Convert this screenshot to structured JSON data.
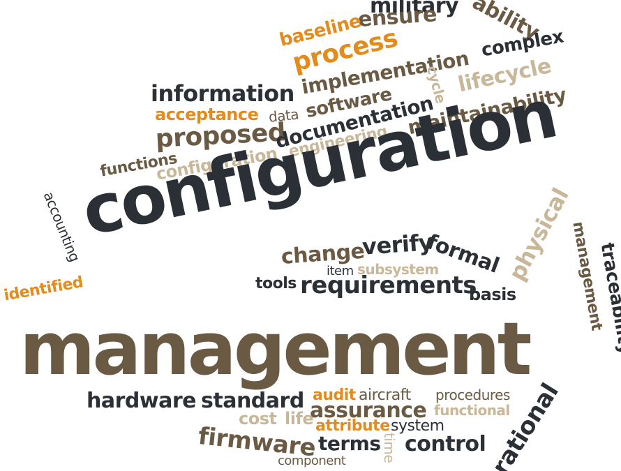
{
  "colors": {
    "dark": "#2b3036",
    "brown": "#6b5a43",
    "orange": "#e38b1b",
    "tan": "#c9b79a",
    "background": "#ffffff"
  },
  "words": {
    "military": "military",
    "ability": "ability",
    "ensure": "ensure",
    "baseline": "baseline",
    "process": "process",
    "complex": "complex",
    "implementation": "implementation",
    "cycle": "cycle",
    "lifecycle": "lifecycle",
    "information": "information",
    "acceptance": "acceptance",
    "data": "data",
    "software": "software",
    "maintainability": "maintainability",
    "documentation": "documentation",
    "proposed": "proposed",
    "engineering": "engineering",
    "functions": "functions",
    "configuration_small": "configuration",
    "configuration_big": "configuration",
    "accounting": "accounting",
    "physical": "physical",
    "management_side": "management",
    "traceability": "traceability",
    "change": "change",
    "verify": "verify",
    "formal": "formal",
    "item": "item",
    "subsystem": "subsystem",
    "identified": "identified",
    "tools": "tools",
    "requirements": "requirements",
    "basis": "basis",
    "management_big": "management",
    "hardware": "hardware",
    "standard": "standard",
    "audit": "audit",
    "aircraft": "aircraft",
    "procedures": "procedures",
    "assurance": "assurance",
    "functional": "functional",
    "cost": "cost",
    "life": "life",
    "attribute": "attribute",
    "system": "system",
    "firmware": "firmware",
    "terms": "terms",
    "time": "time",
    "control": "control",
    "component": "component",
    "rational": "rational"
  }
}
